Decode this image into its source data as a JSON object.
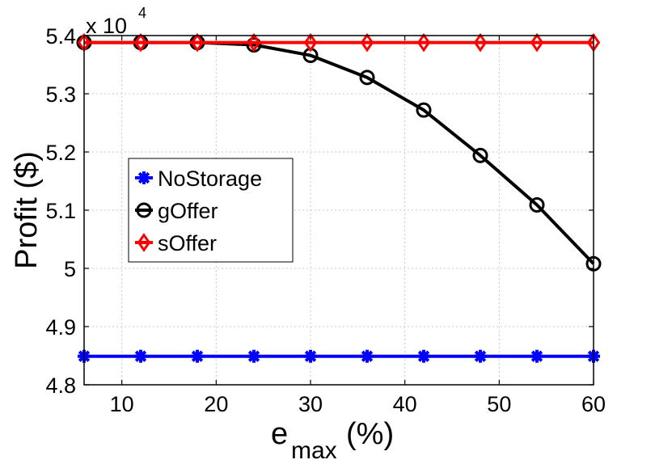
{
  "chart_data": {
    "type": "line",
    "x": [
      6,
      12,
      18,
      24,
      30,
      36,
      42,
      48,
      54,
      60
    ],
    "xticks": [
      10,
      20,
      30,
      40,
      50,
      60
    ],
    "xlim": [
      6,
      60
    ],
    "ylim": [
      4.8,
      5.4
    ],
    "yticks": [
      "4.8",
      "4.9",
      "5",
      "5.1",
      "5.2",
      "5.3",
      "5.4"
    ],
    "y_exponent_base": "x 10",
    "y_exponent_power": "4",
    "ylabel": "Profit ($)",
    "xlabel_main": "e",
    "xlabel_sub": "max",
    "xlabel_unit": "(%)",
    "grid": true,
    "legend_position": "center-left",
    "series": [
      {
        "name": "NoStorage",
        "color": "#0000ff",
        "marker": "star",
        "values": [
          4.849,
          4.849,
          4.849,
          4.849,
          4.849,
          4.849,
          4.849,
          4.849,
          4.849,
          4.849
        ]
      },
      {
        "name": "gOffer",
        "color": "#000000",
        "marker": "circle",
        "values": [
          5.388,
          5.388,
          5.388,
          5.384,
          5.366,
          5.328,
          5.272,
          5.194,
          5.109,
          5.008
        ]
      },
      {
        "name": "sOffer",
        "color": "#ff0000",
        "marker": "diamond",
        "values": [
          5.388,
          5.388,
          5.388,
          5.388,
          5.388,
          5.388,
          5.388,
          5.388,
          5.388,
          5.388
        ]
      }
    ]
  }
}
